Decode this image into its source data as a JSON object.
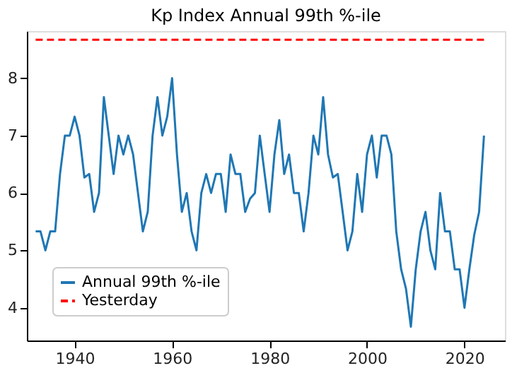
{
  "chart_data": {
    "type": "line",
    "title": "Kp Index Annual 99th %-ile",
    "series": [
      {
        "name": "Annual 99th %-ile",
        "color": "#1f77b4",
        "line_style": "solid",
        "x": [
          1932,
          1933,
          1934,
          1935,
          1936,
          1937,
          1938,
          1939,
          1940,
          1941,
          1942,
          1943,
          1944,
          1945,
          1946,
          1947,
          1948,
          1949,
          1950,
          1951,
          1952,
          1953,
          1954,
          1955,
          1956,
          1957,
          1958,
          1959,
          1960,
          1961,
          1962,
          1963,
          1964,
          1965,
          1966,
          1967,
          1968,
          1969,
          1970,
          1971,
          1972,
          1973,
          1974,
          1975,
          1976,
          1977,
          1978,
          1979,
          1980,
          1981,
          1982,
          1983,
          1984,
          1985,
          1986,
          1987,
          1988,
          1989,
          1990,
          1991,
          1992,
          1993,
          1994,
          1995,
          1996,
          1997,
          1998,
          1999,
          2000,
          2001,
          2002,
          2003,
          2004,
          2005,
          2006,
          2007,
          2008,
          2009,
          2010,
          2011,
          2012,
          2013,
          2014,
          2015,
          2016,
          2017,
          2018,
          2019,
          2020,
          2021,
          2022,
          2023,
          2024
        ],
        "values": [
          5.33,
          5.33,
          5.0,
          5.33,
          5.33,
          6.33,
          7.0,
          7.0,
          7.33,
          7.0,
          6.27,
          6.33,
          5.67,
          6.0,
          7.67,
          7.0,
          6.33,
          7.0,
          6.67,
          7.0,
          6.67,
          6.0,
          5.33,
          5.67,
          7.0,
          7.67,
          7.0,
          7.33,
          8.0,
          6.67,
          5.67,
          6.0,
          5.33,
          5.0,
          6.0,
          6.33,
          6.0,
          6.33,
          6.33,
          5.67,
          6.67,
          6.33,
          6.33,
          5.67,
          5.9,
          6.0,
          7.0,
          6.33,
          5.67,
          6.67,
          7.27,
          6.33,
          6.67,
          6.0,
          6.0,
          5.33,
          6.0,
          7.0,
          6.67,
          7.67,
          6.67,
          6.27,
          6.33,
          5.67,
          5.0,
          5.33,
          6.33,
          5.67,
          6.67,
          7.0,
          6.27,
          7.0,
          7.0,
          6.67,
          5.33,
          4.67,
          4.33,
          3.67,
          4.67,
          5.33,
          5.67,
          5.0,
          4.67,
          6.0,
          5.33,
          5.33,
          4.67,
          4.67,
          4.0,
          4.67,
          5.27,
          5.67,
          7.0
        ]
      },
      {
        "name": "Yesterday",
        "color": "#ff0000",
        "line_style": "dashed",
        "x": [
          1932,
          2024
        ],
        "values": [
          8.67,
          8.67
        ]
      }
    ],
    "xlim": [
      1930.2,
      2028.3
    ],
    "xticks": [
      1940,
      1960,
      1980,
      2000,
      2020
    ],
    "ylim": [
      3.43,
      8.82
    ],
    "yticks": [
      4,
      5,
      6,
      7,
      8
    ],
    "grid": false,
    "legend": "bottom left"
  }
}
